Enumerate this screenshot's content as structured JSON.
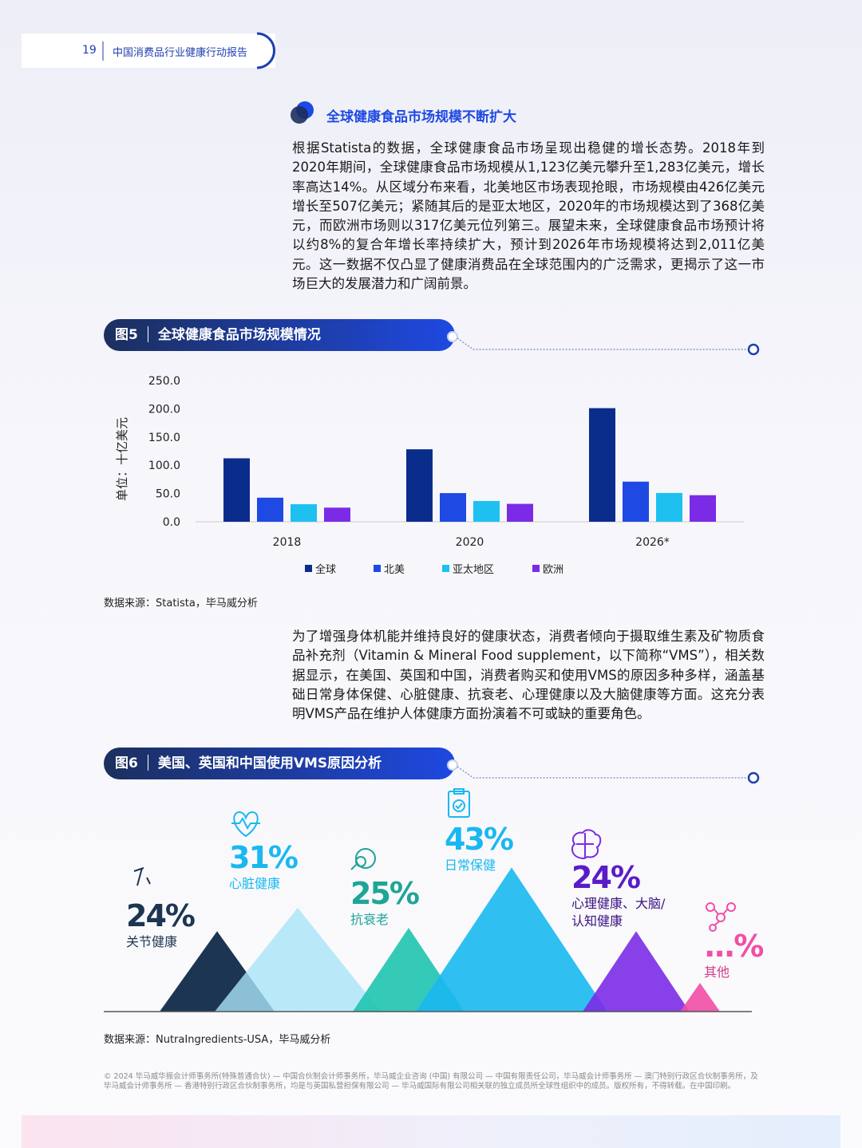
{
  "header": {
    "page": "19",
    "title": "中国消费品行业健康行动报告"
  },
  "section_title": "全球健康食品市场规模不断扩大",
  "paragraph1": "根据Statista的数据，全球健康食品市场呈现出稳健的增长态势。2018年到2020年期间，全球健康食品市场规模从1,123亿美元攀升至1,283亿美元，增长率高达14%。从区域分布来看，北美地区市场表现抢眼，市场规模由426亿美元增长至507亿美元；紧随其后的是亚太地区，2020年的市场规模达到了368亿美元，而欧洲市场则以317亿美元位列第三。展望未来，全球健康食品市场预计将以约8%的复合年增长率持续扩大，预计到2026年市场规模将达到2,011亿美元。这一数据不仅凸显了健康消费品在全球范围内的广泛需求，更揭示了这一市场巨大的发展潜力和广阔前景。",
  "figure5": {
    "label": "图5",
    "title": "全球健康食品市场规模情况"
  },
  "chart_data": {
    "type": "bar",
    "y_label": "单位：十亿美元",
    "categories": [
      "2018",
      "2020",
      "2026*"
    ],
    "series": [
      {
        "name": "全球",
        "color": "#0a2d8c",
        "values": [
          112.3,
          128.3,
          201.1
        ]
      },
      {
        "name": "北美",
        "color": "#1e49e2",
        "values": [
          42.6,
          50.7,
          71
        ]
      },
      {
        "name": "亚太地区",
        "color": "#1ec0f0",
        "values": [
          31,
          36.8,
          51
        ]
      },
      {
        "name": "欧洲",
        "color": "#7b2be6",
        "values": [
          25,
          31.7,
          47
        ]
      }
    ],
    "ylim": [
      0,
      250
    ],
    "yticks": [
      {
        "value": 0,
        "label": "0.0"
      },
      {
        "value": 50,
        "label": "50.0"
      },
      {
        "value": 100,
        "label": "100.0"
      },
      {
        "value": 150,
        "label": "150.0"
      },
      {
        "value": 200,
        "label": "200.0"
      },
      {
        "value": 250,
        "label": "250.0"
      }
    ],
    "grid": false
  },
  "source1": "数据来源：Statista，毕马威分析",
  "paragraph2": "为了增强身体机能并维持良好的健康状态，消费者倾向于摄取维生素及矿物质食品补充剂（Vitamin & Mineral Food supplement，以下简称“VMS”），相关数据显示，在美国、英国和中国，消费者购买和使用VMS的原因多种多样，涵盖基础日常身体保健、心脏健康、抗衰老、心理健康以及大脑健康等方面。这充分表明VMS产品在维护人体健康方面扮演着不可或缺的重要角色。",
  "figure6": {
    "label": "图6",
    "title": "美国、英国和中国使用VMS原因分析",
    "items": [
      {
        "value": 24,
        "label": "24%",
        "name": [
          "关节健康"
        ]
      },
      {
        "value": 31,
        "label": "31%",
        "name": [
          "心脏健康"
        ]
      },
      {
        "value": 25,
        "label": "25%",
        "name": [
          "抗衰老"
        ]
      },
      {
        "value": 43,
        "label": "43%",
        "name": [
          "日常保健"
        ]
      },
      {
        "value": 24,
        "label": "24%",
        "name": [
          "心理健康、大脑/",
          "认知健康"
        ]
      },
      {
        "label": "...%",
        "name": [
          "其他"
        ]
      }
    ]
  },
  "source2": "数据来源：NutraIngredients-USA，毕马威分析",
  "footer": "© 2024 毕马威华振会计师事务所(特殊普通合伙) — 中国合伙制会计师事务所，毕马威企业咨询 (中国) 有限公司 — 中国有限责任公司，毕马威会计师事务所 — 澳门特别行政区合伙制事务所，及毕马威会计师事务所 — 香港特别行政区合伙制事务所，均是与英国私营担保有限公司 — 毕马威国际有限公司相关联的独立成员所全球性组织中的成员。版权所有，不得转载。在中国印刷。"
}
